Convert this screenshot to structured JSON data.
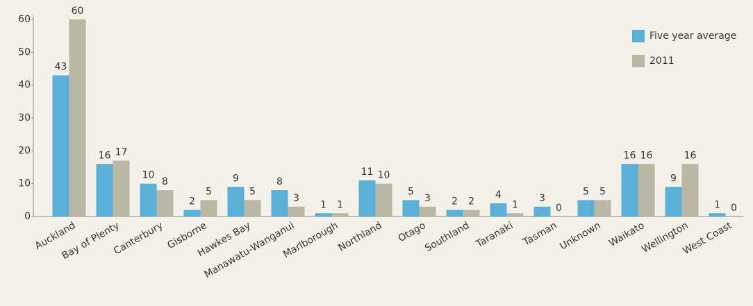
{
  "chart_data": {
    "type": "bar",
    "categories": [
      "Auckland",
      "Bay of Plenty",
      "Canterbury",
      "Gisborne",
      "Hawkes Bay",
      "Manawatu-Wanganui",
      "Marlborough",
      "Northland",
      "Otago",
      "Southland",
      "Taranaki",
      "Tasman",
      "Unknown",
      "Waikato",
      "Wellington",
      "West Coast"
    ],
    "series": [
      {
        "name": "Five year average",
        "color": "#5ab0d6",
        "values": [
          43,
          16,
          10,
          2,
          9,
          8,
          1,
          11,
          5,
          2,
          4,
          3,
          5,
          16,
          9,
          1
        ]
      },
      {
        "name": "2011",
        "color": "#bab7a5",
        "values": [
          60,
          17,
          8,
          5,
          5,
          3,
          1,
          10,
          3,
          2,
          1,
          0,
          5,
          16,
          16,
          0
        ]
      }
    ],
    "ylim": [
      0,
      60
    ],
    "yticks": [
      0,
      10,
      20,
      30,
      40,
      50,
      60
    ],
    "legend": "upper right"
  }
}
